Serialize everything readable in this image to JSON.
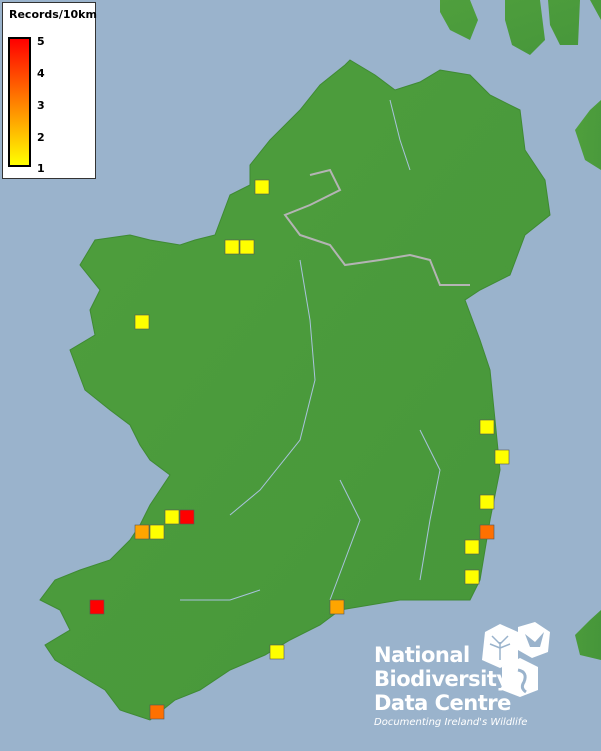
{
  "legend": {
    "title": "Records/10km",
    "ticks": [
      "5",
      "4",
      "3",
      "2",
      "1"
    ],
    "colors": {
      "1": "#ffff00",
      "2": "#ffc800",
      "3": "#ffa500",
      "4": "#ff7000",
      "5": "#ff0000"
    }
  },
  "records": [
    1,
    1,
    1,
    1,
    1,
    1,
    1,
    1,
    5,
    3,
    1,
    4,
    1,
    1,
    5,
    3,
    1,
    4
  ],
  "colors": {
    "sea": "#9ab3cc",
    "land": "#4d9e3c",
    "border": "#b0b0b0",
    "rivers": "#a9c3dd"
  },
  "logo": {
    "line1": "National",
    "line2": "Biodiversity",
    "line3": "Data Centre",
    "tagline": "Documenting Ireland's Wildlife"
  }
}
